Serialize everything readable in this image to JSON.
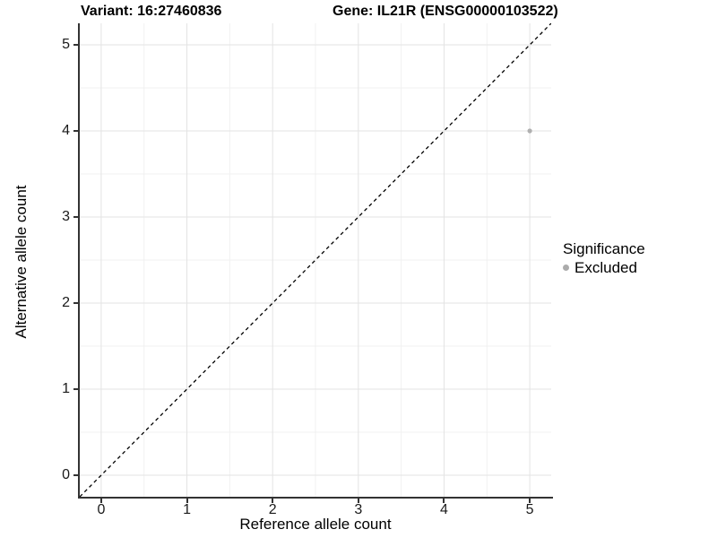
{
  "titles": {
    "left": "Variant: 16:27460836",
    "right": "Gene: IL21R (ENSG00000103522)"
  },
  "chart_data": {
    "type": "scatter",
    "xlabel": "Reference allele count",
    "ylabel": "Alternative allele count",
    "xlim": [
      -0.25,
      5.25
    ],
    "ylim": [
      -0.25,
      5.25
    ],
    "x_ticks": [
      0,
      1,
      2,
      3,
      4,
      5
    ],
    "y_ticks": [
      0,
      1,
      2,
      3,
      4,
      5
    ],
    "x_minor": [
      0.5,
      1.5,
      2.5,
      3.5,
      4.5
    ],
    "y_minor": [
      0.5,
      1.5,
      2.5,
      3.5,
      4.5
    ],
    "grid": true,
    "legend_position": "right",
    "points": [
      {
        "x": 5,
        "y": 4,
        "series": "Excluded"
      }
    ],
    "series": [
      {
        "name": "Excluded",
        "color": "#b0b0b0"
      }
    ],
    "identity_line": {
      "style": "dashed",
      "color": "#000000",
      "slope": 1,
      "intercept": 0
    }
  },
  "legend": {
    "title": "Significance",
    "items": [
      {
        "label": "Excluded",
        "color": "#ababab"
      }
    ]
  },
  "style": {
    "background": "#ffffff",
    "axis_line_color": "#333333",
    "tick_color": "#333333",
    "tick_label_color": "#1a1a1a",
    "grid_major_color": "#e3e3e3",
    "grid_minor_color": "#f1f1f1",
    "point_radius": 2.6
  }
}
